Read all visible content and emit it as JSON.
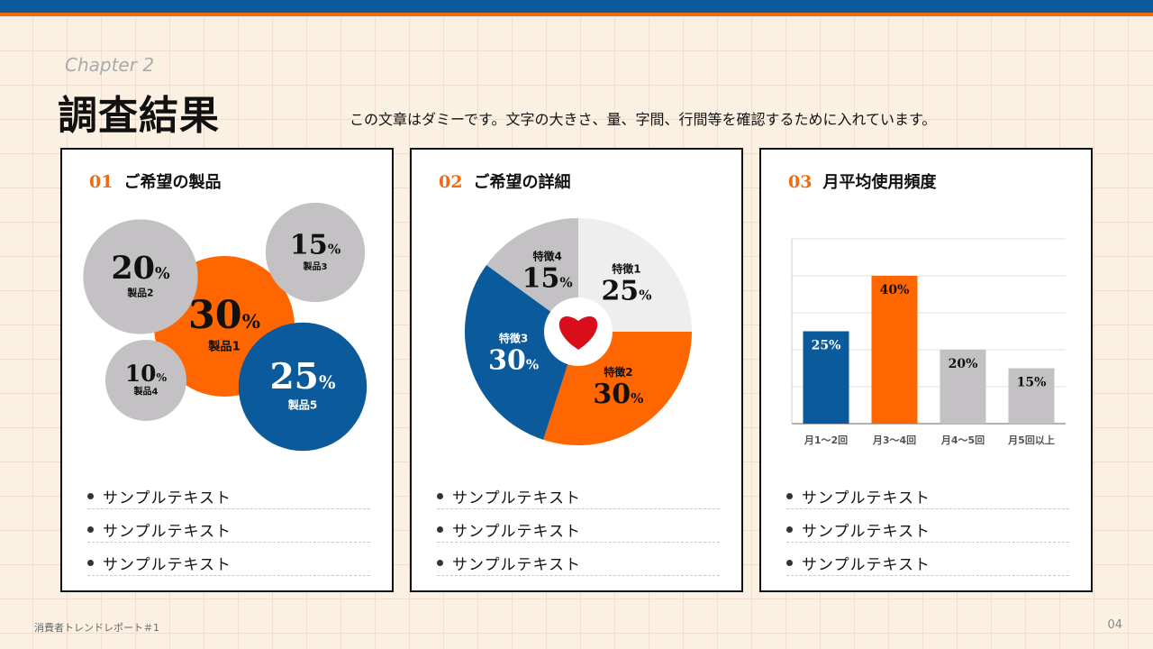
{
  "header": {
    "chapter": "Chapter 2",
    "title": "調査結果",
    "lead": "この文章はダミーです。文字の大きさ、量、字間、行間等を確認するために入れています。"
  },
  "cards": [
    {
      "num": "01",
      "title": "ご希望の製品",
      "bullets": [
        "サンプルテキスト",
        "サンプルテキスト",
        "サンプルテキスト"
      ]
    },
    {
      "num": "02",
      "title": "ご希望の詳細",
      "bullets": [
        "サンプルテキスト",
        "サンプルテキスト",
        "サンプルテキスト"
      ]
    },
    {
      "num": "03",
      "title": "月平均使用頻度",
      "bullets": [
        "サンプルテキスト",
        "サンプルテキスト",
        "サンプルテキスト"
      ]
    }
  ],
  "colors": {
    "blue": "#0a5a9c",
    "orange": "#f26a10",
    "gray": "#c3c1c3",
    "light": "#eeeeee"
  },
  "chart_data": [
    {
      "type": "bubble",
      "categories": [
        "製品1",
        "製品2",
        "製品3",
        "製品4",
        "製品5"
      ],
      "values": [
        30,
        20,
        15,
        10,
        25
      ],
      "colors": [
        "#ff6600",
        "#c3c1c3",
        "#c3c1c3",
        "#c3c1c3",
        "#0a5a9c"
      ]
    },
    {
      "type": "pie",
      "categories": [
        "特徴1",
        "特徴2",
        "特徴3",
        "特徴4"
      ],
      "values": [
        25,
        30,
        30,
        15
      ],
      "colors": [
        "#eeeeee",
        "#ff6600",
        "#0a5a9c",
        "#c3c1c3"
      ],
      "center_icon": "heart-icon"
    },
    {
      "type": "bar",
      "categories": [
        "月1〜2回",
        "月3〜4回",
        "月4〜5回",
        "月5回以上"
      ],
      "values": [
        25,
        40,
        20,
        15
      ],
      "colors": [
        "#0a5a9c",
        "#ff6600",
        "#c3c1c3",
        "#c3c1c3"
      ],
      "ylim": [
        0,
        50
      ],
      "grid": true
    }
  ],
  "footer": {
    "text": "消費者トレンドレポート＃1",
    "page": "04"
  }
}
